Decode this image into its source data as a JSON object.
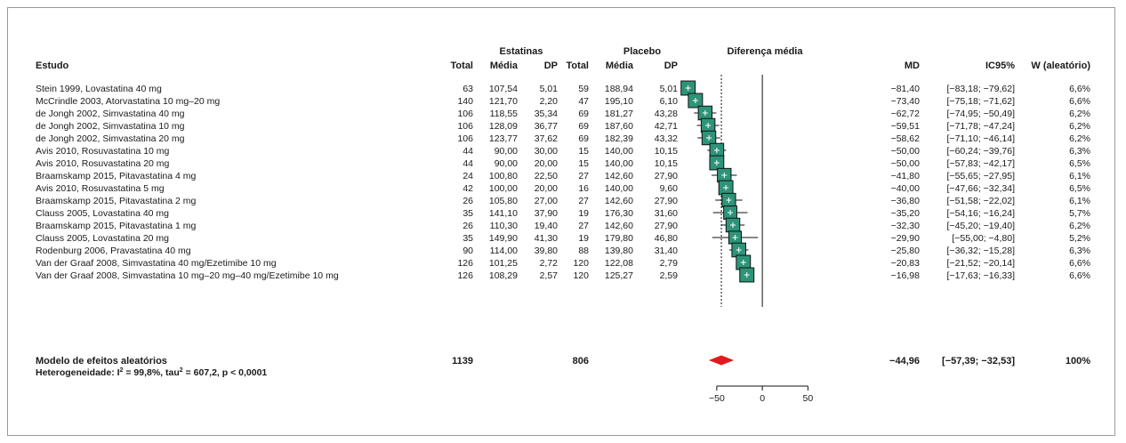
{
  "chart_data": {
    "type": "forest",
    "headers": {
      "group1": "Estatinas",
      "group2": "Placebo",
      "plot": "Diferença média",
      "study": "Estudo",
      "total": "Total",
      "mean": "Média",
      "sd": "DP",
      "md": "MD",
      "ci": "IC95%",
      "weight": "W (aleatório)"
    },
    "studies": [
      {
        "name": "Stein 1999, Lovastatina 40 mg",
        "t1": "63",
        "m1": "107,54",
        "sd1": "5,01",
        "t2": "59",
        "m2": "188,94",
        "sd2": "5,01",
        "md": -81.4,
        "lo": -83.18,
        "hi": -79.62,
        "md_text": "−81,40",
        "ci_text": "[−83,18; −79,62]",
        "w": 6.6,
        "w_text": "6,6%"
      },
      {
        "name": "McCrindle 2003, Atorvastatina 10 mg–20 mg",
        "t1": "140",
        "m1": "121,70",
        "sd1": "2,20",
        "t2": "47",
        "m2": "195,10",
        "sd2": "6,10",
        "md": -73.4,
        "lo": -75.18,
        "hi": -71.62,
        "md_text": "−73,40",
        "ci_text": "[−75,18; −71,62]",
        "w": 6.6,
        "w_text": "6,6%"
      },
      {
        "name": "de Jongh 2002, Simvastatina 40 mg",
        "t1": "106",
        "m1": "118,55",
        "sd1": "35,34",
        "t2": "69",
        "m2": "181,27",
        "sd2": "43,28",
        "md": -62.72,
        "lo": -74.95,
        "hi": -50.49,
        "md_text": "−62,72",
        "ci_text": "[−74,95; −50,49]",
        "w": 6.2,
        "w_text": "6,2%"
      },
      {
        "name": "de Jongh 2002, Simvastatina 10 mg",
        "t1": "106",
        "m1": "128,09",
        "sd1": "36,77",
        "t2": "69",
        "m2": "187,60",
        "sd2": "42,71",
        "md": -59.51,
        "lo": -71.78,
        "hi": -47.24,
        "md_text": "−59,51",
        "ci_text": "[−71,78; −47,24]",
        "w": 6.2,
        "w_text": "6,2%"
      },
      {
        "name": "de Jongh 2002, Simvastatina 20 mg",
        "t1": "106",
        "m1": "123,77",
        "sd1": "37,62",
        "t2": "69",
        "m2": "182,39",
        "sd2": "43,32",
        "md": -58.62,
        "lo": -71.1,
        "hi": -46.14,
        "md_text": "−58,62",
        "ci_text": "[−71,10; −46,14]",
        "w": 6.2,
        "w_text": "6,2%"
      },
      {
        "name": "Avis 2010, Rosuvastatina 10 mg",
        "t1": "44",
        "m1": "90,00",
        "sd1": "30,00",
        "t2": "15",
        "m2": "140,00",
        "sd2": "10,15",
        "md": -50.0,
        "lo": -60.24,
        "hi": -39.76,
        "md_text": "−50,00",
        "ci_text": "[−60,24; −39,76]",
        "w": 6.3,
        "w_text": "6,3%"
      },
      {
        "name": "Avis 2010, Rosuvastatina 20 mg",
        "t1": "44",
        "m1": "90,00",
        "sd1": "20,00",
        "t2": "15",
        "m2": "140,00",
        "sd2": "10,15",
        "md": -50.0,
        "lo": -57.83,
        "hi": -42.17,
        "md_text": "−50,00",
        "ci_text": "[−57,83; −42,17]",
        "w": 6.5,
        "w_text": "6,5%"
      },
      {
        "name": "Braamskamp 2015, Pitavastatina 4 mg",
        "t1": "24",
        "m1": "100,80",
        "sd1": "22,50",
        "t2": "27",
        "m2": "142,60",
        "sd2": "27,90",
        "md": -41.8,
        "lo": -55.65,
        "hi": -27.95,
        "md_text": "−41,80",
        "ci_text": "[−55,65; −27,95]",
        "w": 6.1,
        "w_text": "6,1%"
      },
      {
        "name": "Avis 2010, Rosuvastatina 5 mg",
        "t1": "42",
        "m1": "100,00",
        "sd1": "20,00",
        "t2": "16",
        "m2": "140,00",
        "sd2": "9,60",
        "md": -40.0,
        "lo": -47.66,
        "hi": -32.34,
        "md_text": "−40,00",
        "ci_text": "[−47,66; −32,34]",
        "w": 6.5,
        "w_text": "6,5%"
      },
      {
        "name": "Braamskamp 2015, Pitavastatina 2 mg",
        "t1": "26",
        "m1": "105,80",
        "sd1": "27,00",
        "t2": "27",
        "m2": "142,60",
        "sd2": "27,90",
        "md": -36.8,
        "lo": -51.58,
        "hi": -22.02,
        "md_text": "−36,80",
        "ci_text": "[−51,58; −22,02]",
        "w": 6.1,
        "w_text": "6,1%"
      },
      {
        "name": "Clauss 2005, Lovastatina 40 mg",
        "t1": "35",
        "m1": "141,10",
        "sd1": "37,90",
        "t2": "19",
        "m2": "176,30",
        "sd2": "31,60",
        "md": -35.2,
        "lo": -54.16,
        "hi": -16.24,
        "md_text": "−35,20",
        "ci_text": "[−54,16; −16,24]",
        "w": 5.7,
        "w_text": "5,7%"
      },
      {
        "name": "Braamskamp 2015, Pitavastatina 1 mg",
        "t1": "26",
        "m1": "110,30",
        "sd1": "19,40",
        "t2": "27",
        "m2": "142,60",
        "sd2": "27,90",
        "md": -32.3,
        "lo": -45.2,
        "hi": -19.4,
        "md_text": "−32,30",
        "ci_text": "[−45,20; −19,40]",
        "w": 6.2,
        "w_text": "6,2%"
      },
      {
        "name": "Clauss 2005, Lovastatina 20 mg",
        "t1": "35",
        "m1": "149,90",
        "sd1": "41,30",
        "t2": "19",
        "m2": "179,80",
        "sd2": "46,80",
        "md": -29.9,
        "lo": -55.0,
        "hi": -4.8,
        "md_text": "−29,90",
        "ci_text": "[−55,00; −4,80]",
        "w": 5.2,
        "w_text": "5,2%"
      },
      {
        "name": "Rodenburg 2006, Pravastatina 40 mg",
        "t1": "90",
        "m1": "114,00",
        "sd1": "39,80",
        "t2": "88",
        "m2": "139,80",
        "sd2": "31,40",
        "md": -25.8,
        "lo": -36.32,
        "hi": -15.28,
        "md_text": "−25,80",
        "ci_text": "[−36,32; −15,28]",
        "w": 6.3,
        "w_text": "6,3%"
      },
      {
        "name": "Van der Graaf 2008, Simvastatina 40 mg/Ezetimibe 10 mg",
        "t1": "126",
        "m1": "101,25",
        "sd1": "2,72",
        "t2": "120",
        "m2": "122,08",
        "sd2": "2,79",
        "md": -20.83,
        "lo": -21.52,
        "hi": -20.14,
        "md_text": "−20,83",
        "ci_text": "[−21,52; −20,14]",
        "w": 6.6,
        "w_text": "6,6%"
      },
      {
        "name": "Van der Graaf 2008, Simvastatina 10 mg–20 mg–40 mg/Ezetimibe 10 mg",
        "t1": "126",
        "m1": "108,29",
        "sd1": "2,57",
        "t2": "120",
        "m2": "125,27",
        "sd2": "2,59",
        "md": -16.98,
        "lo": -17.63,
        "hi": -16.33,
        "md_text": "−16,98",
        "ci_text": "[−17,63; −16,33]",
        "w": 6.6,
        "w_text": "6,6%"
      }
    ],
    "summary": {
      "label": "Modelo de efeitos aleatórios",
      "t1": "1139",
      "t2": "806",
      "md": -44.96,
      "lo": -57.39,
      "hi": -32.53,
      "md_text": "−44,96",
      "ci_text": "[−57,39; −32,53]",
      "w_text": "100%"
    },
    "heterogeneity": {
      "prefix": "Heterogeneidade: I",
      "sup1": "2",
      "mid": " = 99,8%, tau",
      "sup2": "2",
      "suffix": " = 607,2, p < 0,0001"
    },
    "x_axis": {
      "range": [
        -85,
        75
      ],
      "ticks": [
        -50,
        0,
        50
      ],
      "tick_labels": [
        "−50",
        "0",
        "50"
      ]
    },
    "colors": {
      "box": "#2e9479",
      "box_stroke": "#111111",
      "diamond": "#e3191c",
      "axis": "#111111"
    }
  }
}
